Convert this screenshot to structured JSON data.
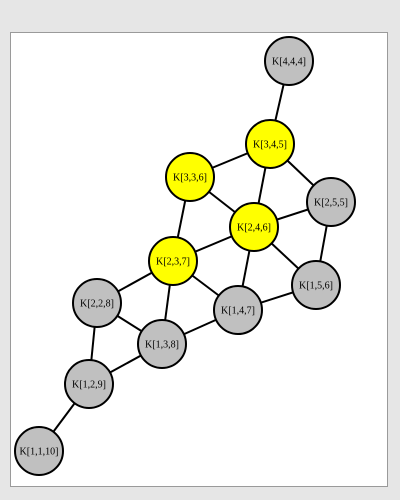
{
  "graph": {
    "highlight_color": "#ffff00",
    "default_color": "#c0c0c0",
    "stroke_color": "#000000",
    "nodes": [
      {
        "id": "k444",
        "label": "K[4,4,4]",
        "highlighted": false
      },
      {
        "id": "k345",
        "label": "K[3,4,5]",
        "highlighted": true
      },
      {
        "id": "k336",
        "label": "K[3,3,6]",
        "highlighted": true
      },
      {
        "id": "k255",
        "label": "K[2,5,5]",
        "highlighted": false
      },
      {
        "id": "k246",
        "label": "K[2,4,6]",
        "highlighted": true
      },
      {
        "id": "k237",
        "label": "K[2,3,7]",
        "highlighted": true
      },
      {
        "id": "k156",
        "label": "K[1,5,6]",
        "highlighted": false
      },
      {
        "id": "k228",
        "label": "K[2,2,8]",
        "highlighted": false
      },
      {
        "id": "k147",
        "label": "K[1,4,7]",
        "highlighted": false
      },
      {
        "id": "k138",
        "label": "K[1,3,8]",
        "highlighted": false
      },
      {
        "id": "k129",
        "label": "K[1,2,9]",
        "highlighted": false
      },
      {
        "id": "k1110",
        "label": "K[1,1,10]",
        "highlighted": false
      }
    ],
    "edges": [
      [
        "k444",
        "k345"
      ],
      [
        "k345",
        "k336"
      ],
      [
        "k345",
        "k255"
      ],
      [
        "k345",
        "k246"
      ],
      [
        "k336",
        "k246"
      ],
      [
        "k336",
        "k237"
      ],
      [
        "k255",
        "k246"
      ],
      [
        "k255",
        "k156"
      ],
      [
        "k246",
        "k237"
      ],
      [
        "k246",
        "k156"
      ],
      [
        "k246",
        "k147"
      ],
      [
        "k237",
        "k228"
      ],
      [
        "k237",
        "k147"
      ],
      [
        "k237",
        "k138"
      ],
      [
        "k156",
        "k147"
      ],
      [
        "k147",
        "k138"
      ],
      [
        "k228",
        "k138"
      ],
      [
        "k228",
        "k129"
      ],
      [
        "k138",
        "k129"
      ],
      [
        "k129",
        "k1110"
      ]
    ]
  }
}
